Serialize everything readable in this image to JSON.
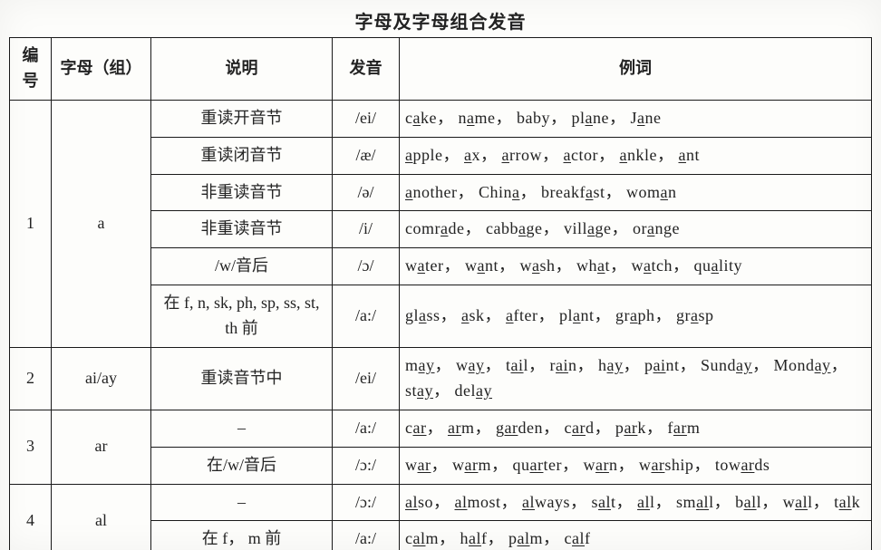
{
  "title": "字母及字母组合发音",
  "headers": {
    "num": "编号",
    "grp": "字母（组）",
    "desc": "说明",
    "pron": "发音",
    "ex": "例词"
  },
  "groups": [
    {
      "num": "1",
      "grp": "a",
      "rows": [
        {
          "desc": "重读开音节",
          "pron": "/ei/",
          "ex": "c<u>a</u>ke， n<u>a</u>me，  baby， pl<u>a</u>ne， J<u>a</u>ne"
        },
        {
          "desc": "重读闭音节",
          "pron": "/æ/",
          "ex": "<u>a</u>pple， <u>a</u>x， <u>a</u>rrow， <u>a</u>ctor， <u>a</u>nkle， <u>a</u>nt"
        },
        {
          "desc": "非重读音节",
          "pron": "/ə/",
          "ex": "<u>a</u>nother， Chin<u>a</u>， breakf<u>a</u>st， wom<u>a</u>n"
        },
        {
          "desc": "非重读音节",
          "pron": "/i/",
          "ex": "comr<u>a</u>de， cabb<u>a</u>ge， vill<u>a</u>ge， or<u>a</u>nge"
        },
        {
          "desc": "/w/音后",
          "pron": "/ɔ/",
          "ex": "w<u>a</u>ter， w<u>a</u>nt， w<u>a</u>sh， wh<u>a</u>t， w<u>a</u>tch， qu<u>a</u>lity"
        },
        {
          "desc": "在 f, n, sk, ph, sp, ss, st, th 前",
          "pron": "/a:/",
          "ex": "gl<u>a</u>ss， <u>a</u>sk， <u>a</u>fter， pl<u>a</u>nt， gr<u>a</u>ph， gr<u>a</u>sp"
        }
      ]
    },
    {
      "num": "2",
      "grp": "ai/ay",
      "rows": [
        {
          "desc": "重读音节中",
          "pron": "/ei/",
          "ex": "m<u>ay</u>， w<u>ay</u>， t<u>ai</u>l， r<u>ai</u>n， h<u>ay</u>， p<u>ai</u>nt， Sund<u>ay</u>， Mond<u>ay</u>， st<u>ay</u>， del<u>ay</u>"
        }
      ]
    },
    {
      "num": "3",
      "grp": "ar",
      "rows": [
        {
          "desc": "–",
          "pron": "/a:/",
          "ex": "c<u>ar</u>， <u>ar</u>m， g<u>ar</u>den， c<u>ar</u>d， p<u>ar</u>k， f<u>ar</u>m"
        },
        {
          "desc": "在/w/音后",
          "pron": "/ɔ:/",
          "ex": "w<u>ar</u>， w<u>ar</u>m， qu<u>ar</u>ter， w<u>ar</u>n， w<u>ar</u>ship， tow<u>ar</u>ds"
        }
      ]
    },
    {
      "num": "4",
      "grp": "al",
      "rows": [
        {
          "desc": "–",
          "pron": "/ɔ:/",
          "ex": "<u>al</u>so， <u>al</u>most， <u>al</u>ways， s<u>al</u>t， <u>al</u>l， sm<u>al</u>l， b<u>al</u>l， w<u>al</u>l， t<u>al</u>k"
        },
        {
          "desc": "在 f， m 前",
          "pron": "/a:/",
          "ex": "c<u>al</u>m， h<u>al</u>f， p<u>al</u>m， c<u>al</u>f"
        }
      ]
    }
  ]
}
